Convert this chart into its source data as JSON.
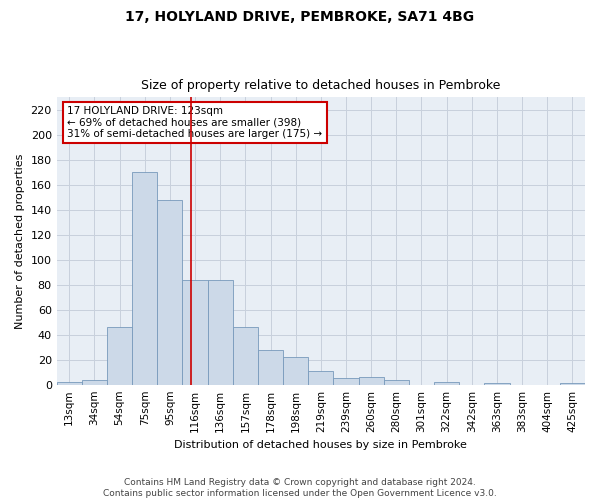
{
  "title_line1": "17, HOLYLAND DRIVE, PEMBROKE, SA71 4BG",
  "title_line2": "Size of property relative to detached houses in Pembroke",
  "xlabel": "Distribution of detached houses by size in Pembroke",
  "ylabel": "Number of detached properties",
  "bar_labels": [
    "13sqm",
    "34sqm",
    "54sqm",
    "75sqm",
    "95sqm",
    "116sqm",
    "136sqm",
    "157sqm",
    "178sqm",
    "198sqm",
    "219sqm",
    "239sqm",
    "260sqm",
    "280sqm",
    "301sqm",
    "322sqm",
    "342sqm",
    "363sqm",
    "383sqm",
    "404sqm",
    "425sqm"
  ],
  "bar_values": [
    2,
    4,
    46,
    170,
    148,
    84,
    84,
    46,
    28,
    22,
    11,
    5,
    6,
    4,
    0,
    2,
    0,
    1,
    0,
    0,
    1
  ],
  "bar_color": "#ccd9e8",
  "bar_edge_color": "#7799bb",
  "annotation_text": "17 HOLYLAND DRIVE: 123sqm\n← 69% of detached houses are smaller (398)\n31% of semi-detached houses are larger (175) →",
  "annotation_box_color": "#ffffff",
  "annotation_box_edge": "#cc0000",
  "vline_color": "#cc0000",
  "grid_color": "#c8d0dc",
  "background_color": "#e8eef5",
  "footer_text": "Contains HM Land Registry data © Crown copyright and database right 2024.\nContains public sector information licensed under the Open Government Licence v3.0.",
  "ylim": [
    0,
    230
  ],
  "yticks": [
    0,
    20,
    40,
    60,
    80,
    100,
    120,
    140,
    160,
    180,
    200,
    220
  ],
  "property_sqm": 123
}
